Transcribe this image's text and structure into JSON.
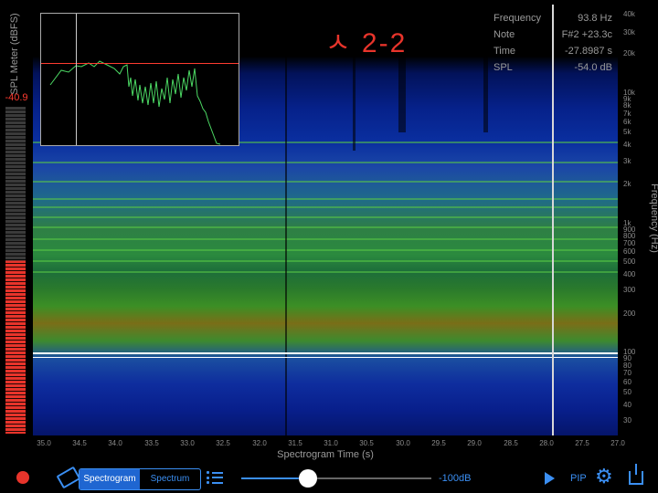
{
  "meter": {
    "title": "SPL Meter (dBFS)",
    "value": "-40.9",
    "level_fraction": 0.53
  },
  "annotation_title": "ㅅ 2-2",
  "readout": {
    "rows": [
      {
        "label": "Frequency",
        "value": "93.8 Hz"
      },
      {
        "label": "Note",
        "value": "F#2 +23.3c"
      },
      {
        "label": "Time",
        "value": "-27.8987 s"
      },
      {
        "label": "SPL",
        "value": "-54.0 dB"
      }
    ]
  },
  "frequency_axis": {
    "title": "Frequency (Hz)",
    "ticks": [
      "40k",
      "30k",
      "20k",
      "10k",
      "9k",
      "8k",
      "7k",
      "6k",
      "5k",
      "4k",
      "3k",
      "2k",
      "1k",
      "900",
      "800",
      "700",
      "600",
      "500",
      "400",
      "300",
      "200",
      "100",
      "90",
      "80",
      "70",
      "60",
      "50",
      "40",
      "30"
    ]
  },
  "time_axis": {
    "title": "Spectrogram Time (s)",
    "ticks": [
      "35.0",
      "34.5",
      "34.0",
      "33.5",
      "33.0",
      "32.5",
      "32.0",
      "31.5",
      "31.0",
      "30.5",
      "30.0",
      "29.5",
      "29.0",
      "28.5",
      "28.0",
      "27.5",
      "27.0"
    ]
  },
  "toolbar": {
    "modes": [
      "Spectrogram",
      "Spectrum"
    ],
    "selected_mode": "Spectrogram",
    "gain_label": "-100dB",
    "gain_fraction": 0.35,
    "pip_label": "PIP",
    "icons": [
      "record-icon",
      "eraser-icon",
      "list-icon",
      "play-icon",
      "gear-icon",
      "share-icon"
    ]
  },
  "colors": {
    "accent": "#3b8ff3",
    "record": "#e8342b",
    "reference_line": "#ff3b30",
    "spectrum_trace": "#4cd964"
  }
}
